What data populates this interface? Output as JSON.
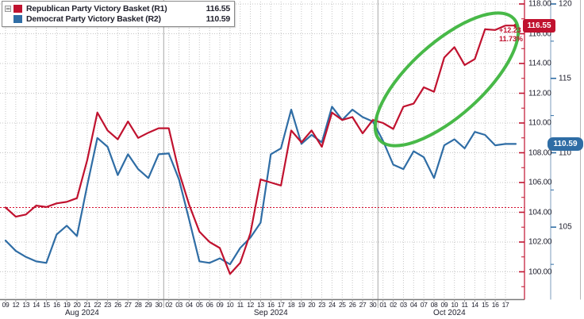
{
  "legend": {
    "collapse_glyph": "−",
    "series": [
      {
        "label": "Republican Party Victory Basket (R1)",
        "value": "116.55"
      },
      {
        "label": "Democrat Party Victory Basket (R2)",
        "value": "110.59"
      }
    ]
  },
  "badges": {
    "r1_last": "116.55",
    "r2_last": "110.59"
  },
  "annotation": {
    "change_abs": "+12.23",
    "change_pct": "11.73%"
  },
  "colors": {
    "republican": "#c0122f",
    "democrat": "#2f6da5",
    "highlight_ellipse": "#3eb53e",
    "reference_line": "#d40e2e",
    "grid": "#c6c6c6",
    "month_separator": "#a8a8a8",
    "bottom_axis": "#7a7a7a",
    "blue_axis_line": "#92aec7",
    "axis_text": "#20202e"
  },
  "chart_data": {
    "type": "line",
    "title": "",
    "xlabel": "",
    "ylabel": "",
    "grid": true,
    "legend_position": "top-left",
    "x_axis": {
      "months": [
        {
          "label": "Aug 2024",
          "dates": [
            "09",
            "12",
            "13",
            "14",
            "15",
            "16",
            "19",
            "20",
            "21",
            "22",
            "23",
            "26",
            "27",
            "28",
            "29",
            "30"
          ]
        },
        {
          "label": "Sep 2024",
          "dates": [
            "02",
            "03",
            "04",
            "05",
            "06",
            "09",
            "10",
            "11",
            "12",
            "13",
            "16",
            "17",
            "18",
            "19",
            "20",
            "23",
            "24",
            "25",
            "26",
            "27",
            "30"
          ]
        },
        {
          "label": "Oct 2024",
          "dates": [
            "01",
            "02",
            "03",
            "04",
            "07",
            "08",
            "09",
            "10",
            "11",
            "14",
            "15",
            "16",
            "17"
          ]
        }
      ]
    },
    "y_axis_r1": {
      "side": "right",
      "name": "R1",
      "tick_values": [
        118,
        116,
        114,
        112,
        110,
        108,
        106,
        104,
        102,
        100
      ],
      "tick_labels": [
        "118.00",
        "116.00",
        "114.00",
        "112.00",
        "110.00",
        "108.00",
        "106.00",
        "104.00",
        "102.00",
        "100.00"
      ],
      "range": [
        99.0,
        118.3
      ]
    },
    "y_axis_r2": {
      "side": "right",
      "name": "R2",
      "tick_values": [
        120,
        115,
        110,
        105
      ],
      "tick_labels": [
        "120",
        "115",
        "110",
        "105"
      ],
      "range": [
        100.2,
        120.3
      ]
    },
    "series": [
      {
        "name": "Republican Party Victory Basket",
        "axis": "R1",
        "color": "#c0122f",
        "last_value": 116.55,
        "values": [
          104.32,
          103.7,
          103.85,
          104.45,
          104.35,
          104.6,
          104.7,
          104.95,
          107.5,
          110.7,
          109.5,
          108.9,
          110.1,
          109.0,
          109.35,
          109.65,
          109.65,
          106.7,
          104.5,
          102.7,
          102.0,
          101.6,
          99.85,
          100.6,
          102.6,
          106.2,
          106.0,
          105.8,
          109.5,
          108.7,
          109.5,
          108.4,
          110.7,
          110.2,
          110.4,
          109.3,
          110.2,
          110.0,
          109.6,
          111.1,
          111.3,
          112.4,
          112.1,
          114.4,
          115.1,
          113.9,
          114.3,
          116.3,
          116.25,
          116.55
        ]
      },
      {
        "name": "Democrat Party Victory Basket",
        "axis": "R2",
        "color": "#2f6da5",
        "last_value": 110.59,
        "values": [
          104.1,
          103.4,
          103.0,
          102.7,
          102.6,
          104.5,
          105.1,
          104.4,
          107.8,
          111.0,
          110.4,
          108.5,
          109.9,
          108.9,
          108.3,
          109.9,
          109.95,
          108.2,
          105.5,
          102.7,
          102.6,
          102.9,
          102.5,
          103.6,
          104.3,
          105.3,
          109.9,
          110.3,
          112.9,
          110.6,
          111.2,
          110.7,
          113.1,
          112.2,
          112.9,
          112.4,
          112.1,
          110.8,
          109.2,
          108.9,
          110.1,
          109.7,
          108.3,
          110.5,
          110.9,
          110.3,
          111.4,
          111.2,
          110.5,
          110.59
        ]
      }
    ],
    "reference_line": {
      "axis": "R1",
      "value": 104.32,
      "style": "dotted",
      "color": "#d40e2e"
    },
    "annotations": {
      "change_abs": "+12.23",
      "change_pct": "11.73%",
      "ellipse_highlight": "green ellipse around October 2024 divergence of Republican basket"
    }
  }
}
